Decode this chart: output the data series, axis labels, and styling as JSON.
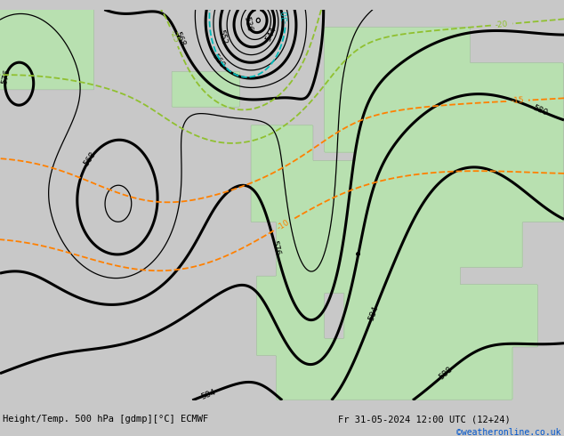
{
  "title_left": "Height/Temp. 500 hPa [gdmp][°C] ECMWF",
  "title_right": "Fr 31-05-2024 12:00 UTC (12+24)",
  "credit": "©weatheronline.co.uk",
  "bg_gray": "#c8c8c8",
  "land_green": "#b8e0b0",
  "sea_gray": "#c8c8c8",
  "fig_width": 6.34,
  "fig_height": 4.9,
  "dpi": 100,
  "lon_min": -58,
  "lon_max": 50,
  "lat_min": 30,
  "lat_max": 74
}
